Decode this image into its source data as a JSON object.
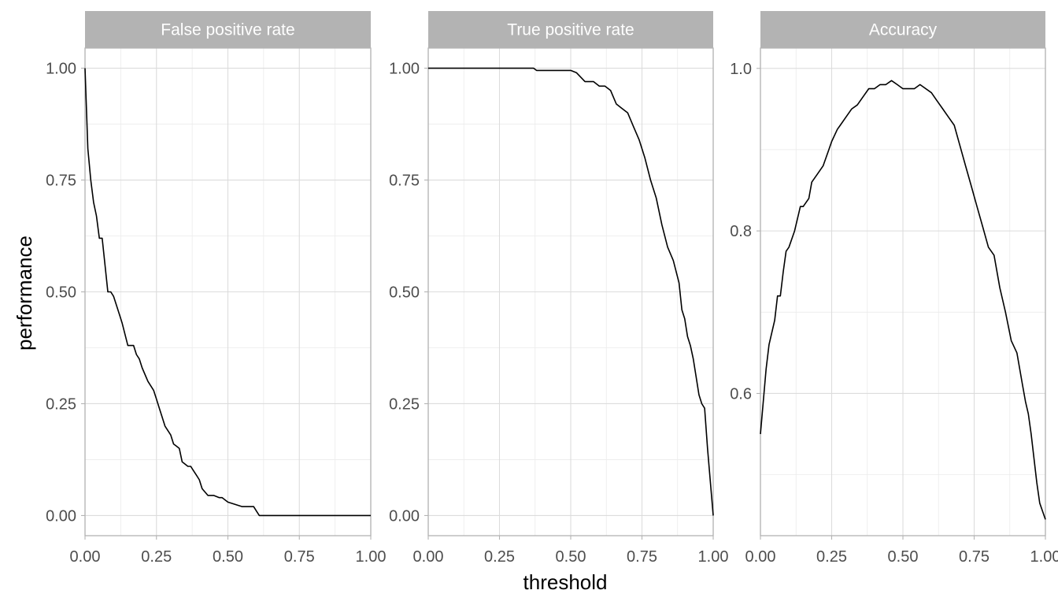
{
  "chart_data": {
    "type": "line",
    "xlabel": "threshold",
    "ylabel": "performance",
    "grid": true,
    "legend": "none",
    "facets": [
      {
        "strip": "False positive rate",
        "xlim": [
          0,
          1
        ],
        "ylim": [
          -0.045,
          1.045
        ],
        "x_ticks": [
          "0.00",
          "0.25",
          "0.50",
          "0.75",
          "1.00"
        ],
        "x_tick_values": [
          0,
          0.25,
          0.5,
          0.75,
          1
        ],
        "y_ticks": [
          "0.00",
          "0.25",
          "0.50",
          "0.75",
          "1.00"
        ],
        "y_tick_values": [
          0,
          0.25,
          0.5,
          0.75,
          1
        ],
        "series": [
          {
            "x": [
              0,
              0.01,
              0.02,
              0.03,
              0.04,
              0.05,
              0.06,
              0.07,
              0.08,
              0.09,
              0.1,
              0.12,
              0.13,
              0.15,
              0.16,
              0.17,
              0.18,
              0.19,
              0.2,
              0.22,
              0.24,
              0.25,
              0.26,
              0.27,
              0.28,
              0.3,
              0.31,
              0.32,
              0.33,
              0.34,
              0.36,
              0.37,
              0.38,
              0.39,
              0.4,
              0.41,
              0.43,
              0.44,
              0.45,
              0.47,
              0.48,
              0.5,
              0.55,
              0.58,
              0.59,
              0.6,
              0.61,
              0.65,
              0.75,
              0.85,
              1.0
            ],
            "y": [
              1.0,
              0.82,
              0.75,
              0.7,
              0.67,
              0.62,
              0.62,
              0.56,
              0.5,
              0.5,
              0.49,
              0.45,
              0.43,
              0.38,
              0.38,
              0.38,
              0.36,
              0.35,
              0.33,
              0.3,
              0.28,
              0.26,
              0.24,
              0.22,
              0.2,
              0.18,
              0.16,
              0.155,
              0.15,
              0.12,
              0.11,
              0.11,
              0.1,
              0.09,
              0.08,
              0.06,
              0.045,
              0.045,
              0.045,
              0.04,
              0.04,
              0.03,
              0.02,
              0.02,
              0.02,
              0.01,
              0.0,
              0.0,
              0.0,
              0.0,
              0.0
            ]
          }
        ]
      },
      {
        "strip": "True positive rate",
        "xlim": [
          0,
          1
        ],
        "ylim": [
          -0.045,
          1.045
        ],
        "x_ticks": [
          "0.00",
          "0.25",
          "0.50",
          "0.75",
          "1.00"
        ],
        "x_tick_values": [
          0,
          0.25,
          0.5,
          0.75,
          1
        ],
        "y_ticks": [
          "0.00",
          "0.25",
          "0.50",
          "0.75",
          "1.00"
        ],
        "y_tick_values": [
          0,
          0.25,
          0.5,
          0.75,
          1
        ],
        "series": [
          {
            "x": [
              0,
              0.1,
              0.2,
              0.3,
              0.37,
              0.38,
              0.45,
              0.5,
              0.52,
              0.55,
              0.58,
              0.6,
              0.62,
              0.64,
              0.66,
              0.68,
              0.7,
              0.72,
              0.74,
              0.76,
              0.78,
              0.8,
              0.82,
              0.84,
              0.86,
              0.88,
              0.89,
              0.9,
              0.91,
              0.92,
              0.93,
              0.94,
              0.95,
              0.96,
              0.97,
              0.98,
              1.0
            ],
            "y": [
              1.0,
              1.0,
              1.0,
              1.0,
              1.0,
              0.995,
              0.995,
              0.995,
              0.99,
              0.97,
              0.97,
              0.96,
              0.96,
              0.95,
              0.92,
              0.91,
              0.9,
              0.87,
              0.84,
              0.8,
              0.75,
              0.71,
              0.65,
              0.6,
              0.57,
              0.52,
              0.46,
              0.44,
              0.4,
              0.38,
              0.35,
              0.31,
              0.27,
              0.25,
              0.24,
              0.15,
              0.0
            ]
          }
        ]
      },
      {
        "strip": "Accuracy",
        "xlim": [
          0,
          1
        ],
        "ylim": [
          0.425,
          1.025
        ],
        "x_ticks": [
          "0.00",
          "0.25",
          "0.50",
          "0.75",
          "1.00"
        ],
        "x_tick_values": [
          0,
          0.25,
          0.5,
          0.75,
          1
        ],
        "y_ticks": [
          "0.6",
          "0.8",
          "1.0"
        ],
        "y_tick_values": [
          0.6,
          0.8,
          1.0
        ],
        "series": [
          {
            "x": [
              0,
              0.01,
              0.02,
              0.03,
              0.05,
              0.06,
              0.07,
              0.08,
              0.09,
              0.1,
              0.12,
              0.14,
              0.15,
              0.17,
              0.18,
              0.2,
              0.22,
              0.24,
              0.25,
              0.27,
              0.28,
              0.3,
              0.32,
              0.34,
              0.36,
              0.38,
              0.4,
              0.42,
              0.44,
              0.46,
              0.48,
              0.5,
              0.52,
              0.54,
              0.56,
              0.6,
              0.62,
              0.64,
              0.66,
              0.68,
              0.7,
              0.72,
              0.74,
              0.76,
              0.78,
              0.8,
              0.82,
              0.84,
              0.86,
              0.88,
              0.9,
              0.91,
              0.92,
              0.93,
              0.94,
              0.95,
              0.96,
              0.97,
              0.98,
              0.99,
              1.0
            ],
            "y": [
              0.55,
              0.59,
              0.63,
              0.66,
              0.69,
              0.72,
              0.72,
              0.75,
              0.775,
              0.78,
              0.8,
              0.83,
              0.83,
              0.84,
              0.86,
              0.87,
              0.88,
              0.9,
              0.91,
              0.925,
              0.93,
              0.94,
              0.95,
              0.955,
              0.965,
              0.975,
              0.975,
              0.98,
              0.98,
              0.985,
              0.98,
              0.975,
              0.975,
              0.975,
              0.98,
              0.97,
              0.96,
              0.95,
              0.94,
              0.93,
              0.905,
              0.88,
              0.855,
              0.83,
              0.805,
              0.78,
              0.77,
              0.73,
              0.7,
              0.665,
              0.65,
              0.63,
              0.61,
              0.59,
              0.575,
              0.55,
              0.52,
              0.49,
              0.465,
              0.455,
              0.445
            ]
          }
        ]
      }
    ]
  }
}
